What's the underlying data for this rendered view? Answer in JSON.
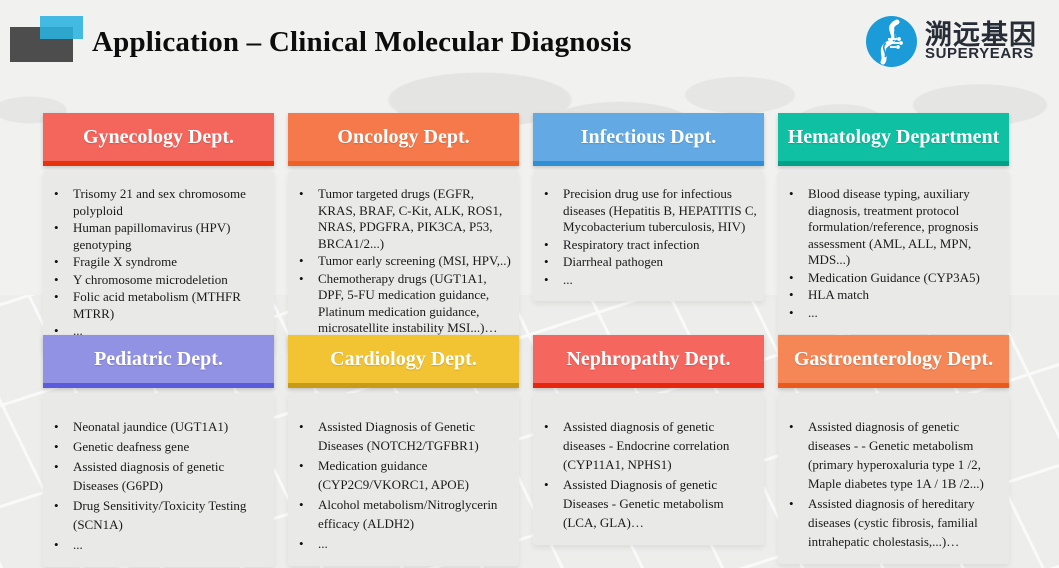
{
  "slide": {
    "title": "Application – Clinical Molecular Diagnosis",
    "brand": {
      "name_cn": "溯远基因",
      "name_en": "SUPERYEARS",
      "logo_color": "#1b9bd8"
    }
  },
  "cards": [
    {
      "title": "Gynecology Dept.",
      "colors": {
        "header": "#f4655c",
        "strip": "#e6330e"
      },
      "bullets": [
        "Trisomy 21 and sex chromosome polyploid",
        "Human papillomavirus (HPV) genotyping",
        "Fragile X syndrome",
        "Y chromosome microdeletion",
        "Folic acid metabolism (MTHFR MTRR)",
        "..."
      ]
    },
    {
      "title": "Oncology Dept.",
      "colors": {
        "header": "#f5794a",
        "strip": "#ed6127"
      },
      "bullets": [
        "Tumor targeted drugs (EGFR, KRAS, BRAF, C-Kit, ALK, ROS1, NRAS, PDGFRA, PIK3CA, P53, BRCA1/2...)",
        "Tumor early screening (MSI, HPV,..)",
        "Chemotherapy drugs (UGT1A1, DPF, 5-FU medication guidance, Platinum medication guidance, microsatellite instability MSI...)…"
      ]
    },
    {
      "title": "Infectious Dept.",
      "colors": {
        "header": "#63aae4",
        "strip": "#2e8fd4"
      },
      "bullets": [
        "Precision drug use for infectious diseases (Hepatitis B, HEPATITIS C, Mycobacterium tuberculosis, HIV)",
        "Respiratory tract infection",
        "Diarrheal pathogen",
        "..."
      ]
    },
    {
      "title": "Hematology Department",
      "colors": {
        "header": "#0fc0a2",
        "strip": "#00a287"
      },
      "bullets": [
        "Blood disease typing, auxiliary diagnosis, treatment protocol formulation/reference, prognosis assessment (AML, ALL, MPN, MDS...)",
        "Medication Guidance (CYP3A5)",
        "HLA match",
        "..."
      ]
    },
    {
      "title": "Pediatric Dept.",
      "colors": {
        "header": "#9292e4",
        "strip": "#5b5bde"
      },
      "bullets": [
        "Neonatal jaundice (UGT1A1)",
        "Genetic deafness gene",
        "Assisted diagnosis of genetic Diseases (G6PD)",
        "Drug Sensitivity/Toxicity Testing (SCN1A)",
        "..."
      ]
    },
    {
      "title": "Cardiology Dept.",
      "colors": {
        "header": "#f2c434",
        "strip": "#c79a18"
      },
      "bullets": [
        "Assisted Diagnosis of Genetic Diseases (NOTCH2/TGFBR1)",
        "Medication guidance (CYP2C9/VKORC1, APOE)",
        "Alcohol metabolism/Nitroglycerin efficacy (ALDH2)",
        "..."
      ]
    },
    {
      "title": "Nephropathy Dept.",
      "colors": {
        "header": "#f4665e",
        "strip": "#e8260e"
      },
      "bullets": [
        "Assisted diagnosis of genetic diseases - Endocrine correlation (CYP11A1, NPHS1)",
        "Assisted Diagnosis of genetic Diseases - Genetic metabolism (LCA, GLA)…"
      ]
    },
    {
      "title": "Gastroenterology Dept.",
      "colors": {
        "header": "#f58757",
        "strip": "#ea5a1d"
      },
      "bullets": [
        "Assisted diagnosis of genetic diseases - - Genetic metabolism (primary hyperoxaluria type 1 /2, Maple diabetes type 1A / 1B /2...)",
        "Assisted diagnosis of hereditary diseases (cystic fibrosis, familial intrahepatic cholestasis,...)…"
      ]
    }
  ]
}
